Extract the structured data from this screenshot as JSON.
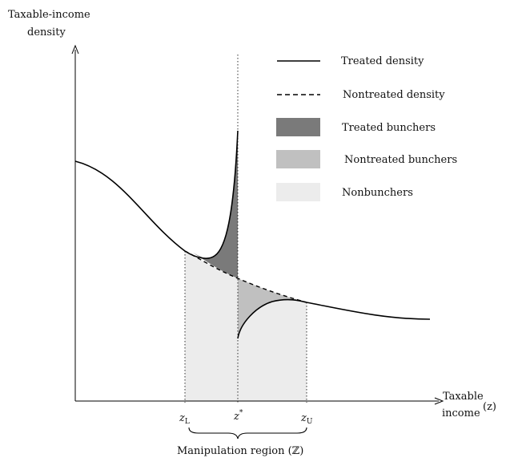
{
  "axes": {
    "y_label_line1": "Taxable-income",
    "y_label_line2": "density",
    "x_label_line1": "Taxable",
    "x_label_line2": "income",
    "x_symbol": "(z)"
  },
  "ticks": {
    "z_lower_base": "z",
    "z_lower_sub": "L",
    "z_star_base": "z",
    "z_star_sup": "*",
    "z_upper_base": "z",
    "z_upper_sub": "U"
  },
  "manipulation_label": "Manipulation region (ℤ)",
  "legend": [
    {
      "label": "Treated density",
      "kind": "solid-line",
      "color": "#000000"
    },
    {
      "label": "Nontreated density",
      "kind": "dashed-line",
      "color": "#000000"
    },
    {
      "label": "Treated bunchers",
      "kind": "swatch",
      "color": "#7a7a7a"
    },
    {
      "label": "Nontreated bunchers",
      "kind": "swatch",
      "color": "#c0c0c0"
    },
    {
      "label": "Nonbunchers",
      "kind": "swatch",
      "color": "#ececec"
    }
  ],
  "colors": {
    "treated_bunchers": "#7a7a7a",
    "nontreated_bunchers": "#c0c0c0",
    "nonbunchers": "#ececec",
    "curve": "#000000"
  }
}
